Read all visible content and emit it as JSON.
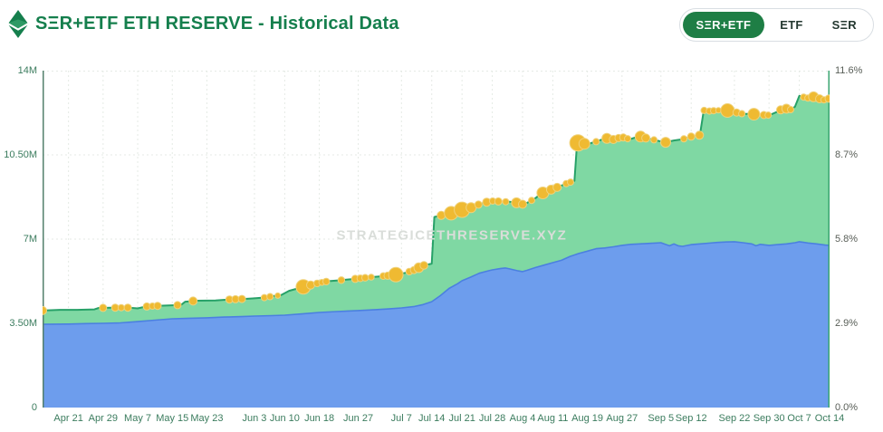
{
  "header": {
    "title": "SΞR+ETF ETH RESERVE - Historical Data",
    "toggle_options": [
      {
        "label": "SΞR+ETF",
        "active": true
      },
      {
        "label": "ETF",
        "active": false
      },
      {
        "label": "SΞR",
        "active": false
      }
    ]
  },
  "watermark": "STRATEGICETHRESERVE.XYZ",
  "colors": {
    "brand_green": "#157f4d",
    "active_pill_bg": "#1e7e45",
    "green_area": "#7fd8a3",
    "green_line": "#27a168",
    "blue_area": "#6d9ded",
    "blue_line": "#4b80e0",
    "dot_fill": "#efba32",
    "dot_ring": "#f0d27a",
    "grid": "#e5eae5",
    "left_axis_line": "#53806c",
    "right_axis_line": "#3ba672"
  },
  "chart_data": {
    "type": "area",
    "stacked": true,
    "title": "SΞR+ETF ETH RESERVE - Historical Data",
    "x_total_days": 182,
    "ylim": [
      0,
      14
    ],
    "y_left_unit": "millions of ETH",
    "y_right_unit": "% of ETH supply",
    "grid": "dotted",
    "legend": "none",
    "x_ticks": [
      {
        "label": "Apr 21",
        "d": 6
      },
      {
        "label": "Apr 29",
        "d": 14
      },
      {
        "label": "May 7",
        "d": 22
      },
      {
        "label": "May 15",
        "d": 30
      },
      {
        "label": "May 23",
        "d": 38
      },
      {
        "label": "Jun 3",
        "d": 49
      },
      {
        "label": "Jun 10",
        "d": 56
      },
      {
        "label": "Jun 18",
        "d": 64
      },
      {
        "label": "Jun 27",
        "d": 73
      },
      {
        "label": "Jul 7",
        "d": 83
      },
      {
        "label": "Jul 14",
        "d": 90
      },
      {
        "label": "Jul 21",
        "d": 97
      },
      {
        "label": "Jul 28",
        "d": 104
      },
      {
        "label": "Aug 4",
        "d": 111
      },
      {
        "label": "Aug 11",
        "d": 118
      },
      {
        "label": "Aug 19",
        "d": 126
      },
      {
        "label": "Aug 27",
        "d": 134
      },
      {
        "label": "Sep 5",
        "d": 143
      },
      {
        "label": "Sep 12",
        "d": 150
      },
      {
        "label": "Sep 22",
        "d": 160
      },
      {
        "label": "Sep 30",
        "d": 168
      },
      {
        "label": "Oct 7",
        "d": 175
      },
      {
        "label": "Oct 14",
        "d": 182
      }
    ],
    "y_left_ticks": [
      {
        "label": "0",
        "v": 0
      },
      {
        "label": "3.50M",
        "v": 3.5
      },
      {
        "label": "7M",
        "v": 7
      },
      {
        "label": "10.50M",
        "v": 10.5
      },
      {
        "label": "14M",
        "v": 14
      }
    ],
    "y_right_ticks": [
      {
        "label": "0.0%",
        "v": 0
      },
      {
        "label": "2.9%",
        "v": 3.5
      },
      {
        "label": "5.8%",
        "v": 7
      },
      {
        "label": "8.7%",
        "v": 10.5
      },
      {
        "label": "11.6%",
        "v": 14
      }
    ],
    "series": [
      {
        "name": "ETF Reserve (blue area, bottom)",
        "unit": "M ETH",
        "points": [
          [
            0,
            3.46
          ],
          [
            6,
            3.47
          ],
          [
            10,
            3.49
          ],
          [
            14,
            3.5
          ],
          [
            18,
            3.52
          ],
          [
            22,
            3.57
          ],
          [
            26,
            3.63
          ],
          [
            30,
            3.69
          ],
          [
            34,
            3.71
          ],
          [
            38,
            3.73
          ],
          [
            42,
            3.76
          ],
          [
            46,
            3.78
          ],
          [
            49,
            3.8
          ],
          [
            53,
            3.82
          ],
          [
            56,
            3.84
          ],
          [
            60,
            3.89
          ],
          [
            64,
            3.95
          ],
          [
            68,
            3.99
          ],
          [
            73,
            4.03
          ],
          [
            77,
            4.07
          ],
          [
            80,
            4.1
          ],
          [
            83,
            4.14
          ],
          [
            86,
            4.2
          ],
          [
            88,
            4.28
          ],
          [
            90,
            4.4
          ],
          [
            92,
            4.65
          ],
          [
            94,
            4.95
          ],
          [
            96,
            5.15
          ],
          [
            97,
            5.27
          ],
          [
            99,
            5.42
          ],
          [
            101,
            5.58
          ],
          [
            103,
            5.68
          ],
          [
            104,
            5.72
          ],
          [
            106,
            5.78
          ],
          [
            107,
            5.8
          ],
          [
            108,
            5.76
          ],
          [
            109,
            5.72
          ],
          [
            110,
            5.68
          ],
          [
            111,
            5.65
          ],
          [
            112,
            5.7
          ],
          [
            114,
            5.82
          ],
          [
            116,
            5.92
          ],
          [
            118,
            6.02
          ],
          [
            120,
            6.12
          ],
          [
            122,
            6.28
          ],
          [
            124,
            6.4
          ],
          [
            126,
            6.5
          ],
          [
            128,
            6.6
          ],
          [
            130,
            6.63
          ],
          [
            132,
            6.68
          ],
          [
            134,
            6.74
          ],
          [
            136,
            6.78
          ],
          [
            138,
            6.8
          ],
          [
            140,
            6.82
          ],
          [
            143,
            6.85
          ],
          [
            144,
            6.78
          ],
          [
            145,
            6.72
          ],
          [
            146,
            6.8
          ],
          [
            147,
            6.72
          ],
          [
            148,
            6.7
          ],
          [
            150,
            6.77
          ],
          [
            152,
            6.8
          ],
          [
            154,
            6.83
          ],
          [
            156,
            6.86
          ],
          [
            158,
            6.88
          ],
          [
            160,
            6.89
          ],
          [
            162,
            6.85
          ],
          [
            164,
            6.8
          ],
          [
            165,
            6.72
          ],
          [
            166,
            6.78
          ],
          [
            168,
            6.74
          ],
          [
            170,
            6.77
          ],
          [
            172,
            6.8
          ],
          [
            174,
            6.85
          ],
          [
            175,
            6.89
          ],
          [
            177,
            6.84
          ],
          [
            179,
            6.8
          ],
          [
            181,
            6.75
          ],
          [
            182,
            6.74
          ]
        ]
      },
      {
        "name": "Total SΞR+ETF (green top line)",
        "unit": "M ETH",
        "points": [
          [
            0,
            4.03
          ],
          [
            4,
            4.06
          ],
          [
            8,
            4.06
          ],
          [
            12,
            4.08
          ],
          [
            13,
            4.14
          ],
          [
            16,
            4.15
          ],
          [
            20,
            4.15
          ],
          [
            22,
            4.12
          ],
          [
            24,
            4.2
          ],
          [
            27,
            4.23
          ],
          [
            30,
            4.25
          ],
          [
            32,
            4.26
          ],
          [
            33,
            4.4
          ],
          [
            36,
            4.44
          ],
          [
            40,
            4.45
          ],
          [
            43,
            4.49
          ],
          [
            46,
            4.51
          ],
          [
            49,
            4.54
          ],
          [
            52,
            4.58
          ],
          [
            53,
            4.63
          ],
          [
            55,
            4.66
          ],
          [
            57,
            4.85
          ],
          [
            59,
            4.95
          ],
          [
            61,
            5.05
          ],
          [
            64,
            5.18
          ],
          [
            66,
            5.25
          ],
          [
            68,
            5.28
          ],
          [
            70,
            5.31
          ],
          [
            73,
            5.36
          ],
          [
            76,
            5.42
          ],
          [
            78,
            5.45
          ],
          [
            81,
            5.5
          ],
          [
            84,
            5.6
          ],
          [
            86,
            5.72
          ],
          [
            88,
            5.9
          ],
          [
            90,
            5.98
          ],
          [
            90.6,
            7.92
          ],
          [
            92,
            7.98
          ],
          [
            94,
            8.05
          ],
          [
            96,
            8.15
          ],
          [
            97,
            8.22
          ],
          [
            99,
            8.3
          ],
          [
            101,
            8.45
          ],
          [
            103,
            8.55
          ],
          [
            104,
            8.58
          ],
          [
            106,
            8.56
          ],
          [
            108,
            8.55
          ],
          [
            110,
            8.5
          ],
          [
            111,
            8.45
          ],
          [
            112,
            8.5
          ],
          [
            114,
            8.7
          ],
          [
            115,
            8.85
          ],
          [
            116,
            8.95
          ],
          [
            117,
            9.02
          ],
          [
            118,
            9.08
          ],
          [
            119,
            9.15
          ],
          [
            121,
            9.3
          ],
          [
            123,
            9.42
          ],
          [
            123.6,
            11.0
          ],
          [
            125,
            10.98
          ],
          [
            126,
            10.92
          ],
          [
            127,
            11.0
          ],
          [
            128,
            11.05
          ],
          [
            130,
            11.18
          ],
          [
            131,
            11.2
          ],
          [
            132,
            11.14
          ],
          [
            134,
            11.24
          ],
          [
            135,
            11.18
          ],
          [
            136,
            11.16
          ],
          [
            137,
            11.22
          ],
          [
            138,
            11.28
          ],
          [
            139,
            11.22
          ],
          [
            140,
            11.18
          ],
          [
            141,
            11.14
          ],
          [
            142,
            11.1
          ],
          [
            144,
            11.02
          ],
          [
            145,
            11.06
          ],
          [
            146,
            11.1
          ],
          [
            148,
            11.15
          ],
          [
            150,
            11.26
          ],
          [
            152,
            11.32
          ],
          [
            152.9,
            12.35
          ],
          [
            154,
            12.32
          ],
          [
            156,
            12.35
          ],
          [
            158,
            12.36
          ],
          [
            160,
            12.28
          ],
          [
            162,
            12.2
          ],
          [
            164,
            12.2
          ],
          [
            166,
            12.16
          ],
          [
            168,
            12.15
          ],
          [
            169,
            12.22
          ],
          [
            170,
            12.3
          ],
          [
            171,
            12.4
          ],
          [
            172,
            12.42
          ],
          [
            173,
            12.38
          ],
          [
            174,
            12.5
          ],
          [
            175,
            12.95
          ],
          [
            176,
            12.9
          ],
          [
            177,
            12.86
          ],
          [
            178,
            12.92
          ],
          [
            179,
            12.9
          ],
          [
            180,
            12.8
          ],
          [
            181,
            12.78
          ],
          [
            182,
            12.85
          ]
        ]
      }
    ],
    "purchase_dots_note": "gold markers on green top line: [day, radius_px]",
    "purchase_dots": [
      [
        0,
        4.5
      ],
      [
        14,
        4
      ],
      [
        16.8,
        4
      ],
      [
        18.2,
        3.5
      ],
      [
        19.7,
        4
      ],
      [
        24.1,
        4
      ],
      [
        25.4,
        3.5
      ],
      [
        26.6,
        4
      ],
      [
        31.2,
        4
      ],
      [
        34.8,
        4.5
      ],
      [
        43.2,
        4
      ],
      [
        44.6,
        4
      ],
      [
        46.1,
        4
      ],
      [
        51.3,
        3.5
      ],
      [
        52.6,
        3.5
      ],
      [
        54.4,
        3
      ],
      [
        60.3,
        8
      ],
      [
        62,
        4.5
      ],
      [
        63.5,
        3.7
      ],
      [
        64.6,
        3.3
      ],
      [
        65.6,
        3.7
      ],
      [
        69.1,
        3.7
      ],
      [
        72.3,
        4
      ],
      [
        73.5,
        3.7
      ],
      [
        74.6,
        3.7
      ],
      [
        76,
        3.3
      ],
      [
        78.8,
        3.7
      ],
      [
        79.8,
        4
      ],
      [
        81.7,
        8
      ],
      [
        84.8,
        3.7
      ],
      [
        85.9,
        4
      ],
      [
        87,
        5.3
      ],
      [
        88.2,
        4.3
      ],
      [
        92.2,
        4.5
      ],
      [
        94.5,
        7.5
      ],
      [
        97,
        8.5
      ],
      [
        99.1,
        5.5
      ],
      [
        100.8,
        4
      ],
      [
        102.7,
        4.5
      ],
      [
        104.1,
        3.5
      ],
      [
        105.4,
        4
      ],
      [
        107.1,
        3.5
      ],
      [
        109.6,
        5.5
      ],
      [
        111,
        4.5
      ],
      [
        113.1,
        3.5
      ],
      [
        115.7,
        6.5
      ],
      [
        117.6,
        5
      ],
      [
        119,
        4.5
      ],
      [
        121.1,
        3.5
      ],
      [
        122.1,
        3.5
      ],
      [
        123.8,
        9
      ],
      [
        125.3,
        6
      ],
      [
        128,
        3.5
      ],
      [
        130.5,
        5.5
      ],
      [
        132,
        4.5
      ],
      [
        133.2,
        4
      ],
      [
        134.3,
        4
      ],
      [
        135.3,
        3.5
      ],
      [
        138.3,
        6
      ],
      [
        139.5,
        4.5
      ],
      [
        141.4,
        3.5
      ],
      [
        144.1,
        5.5
      ],
      [
        148.3,
        3.5
      ],
      [
        150,
        4
      ],
      [
        151.9,
        4.5
      ],
      [
        153,
        3.5
      ],
      [
        154.2,
        3.5
      ],
      [
        155.2,
        3.5
      ],
      [
        156.3,
        3
      ],
      [
        158.4,
        7.5
      ],
      [
        160.5,
        4
      ],
      [
        161.7,
        3.5
      ],
      [
        164.5,
        6.5
      ],
      [
        166.8,
        4
      ],
      [
        167.8,
        3.5
      ],
      [
        170.7,
        4.5
      ],
      [
        172,
        5
      ],
      [
        173,
        3.5
      ],
      [
        176,
        3.5
      ],
      [
        177,
        3.5
      ],
      [
        178.3,
        5.5
      ],
      [
        179.7,
        4.5
      ],
      [
        180.7,
        3.5
      ],
      [
        181.8,
        4
      ]
    ]
  }
}
